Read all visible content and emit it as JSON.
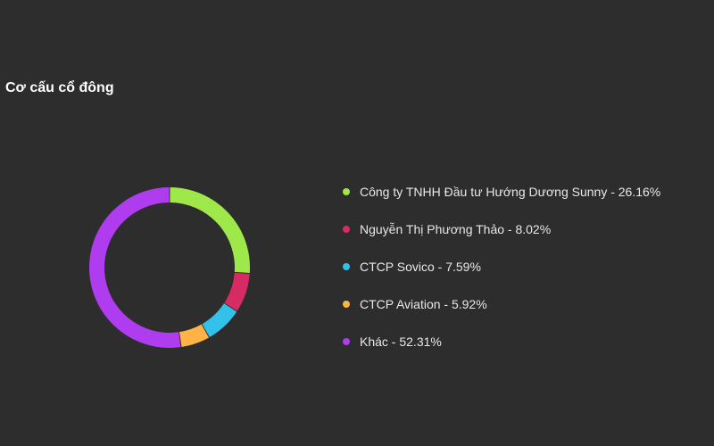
{
  "header": {
    "title": "Cơ cấu cổ đông"
  },
  "colors": {
    "background": "#2d2d2d",
    "title": "#ffffff",
    "legend_text": "#e8e8e8"
  },
  "chart_data": {
    "type": "pie",
    "donut": true,
    "title": "",
    "legend_position": "right",
    "series": [
      {
        "name": "Công ty TNHH Đầu tư Hướng Dương Sunny",
        "value": 26.16,
        "color": "#9fe84a",
        "legend": "Công ty TNHH Đầu tư Hướng Dương Sunny - 26.16%"
      },
      {
        "name": "Nguyễn Thị Phương Thảo",
        "value": 8.02,
        "color": "#d62c63",
        "legend": "Nguyễn Thị Phương Thảo - 8.02%"
      },
      {
        "name": "CTCP Sovico",
        "value": 7.59,
        "color": "#33c1ea",
        "legend": "CTCP Sovico - 7.59%"
      },
      {
        "name": "CTCP Aviation",
        "value": 5.92,
        "color": "#ffb347",
        "legend": "CTCP Aviation - 5.92%"
      },
      {
        "name": "Khác",
        "value": 52.31,
        "color": "#b03cf0",
        "legend": "Khác - 52.31%"
      }
    ]
  }
}
